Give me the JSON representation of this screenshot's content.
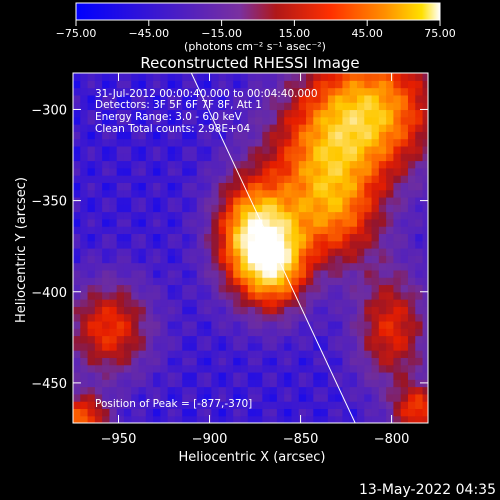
{
  "colorbar": {
    "ticks": [
      "-75.00",
      "-45.00",
      "-15.00",
      "15.00",
      "45.00",
      "75.00"
    ],
    "range": [
      -75,
      75
    ],
    "units_label": "(photons cm⁻² s⁻¹ asec⁻²)"
  },
  "annotations": {
    "time_range": "31-Jul-2012 00:00:40.000 to 00:04:40.000",
    "detectors": "Detectors: 3F 5F 6F 7F 8F, Att 1",
    "energy_range": "Energy Range: 3.0 - 6.0 keV",
    "algorithm": "Clean    Total counts: 2.98E+04",
    "peak_position": "Position of Peak = [-877,-370]"
  },
  "footer": {
    "timestamp": "13-May-2022 04:35"
  },
  "chart_data": {
    "type": "heatmap",
    "title": "Reconstructed RHESSI Image",
    "xlabel": "Heliocentric X (arcsec)",
    "ylabel": "Heliocentric Y (arcsec)",
    "xlim": [
      -975,
      -780
    ],
    "ylim": [
      -472,
      -280
    ],
    "xticks": [
      -950,
      -900,
      -850,
      -800
    ],
    "yticks": [
      -300,
      -350,
      -400,
      -450
    ],
    "xtick_labels": [
      "−950",
      "−900",
      "−850",
      "−800"
    ],
    "ytick_labels": [
      "−300",
      "−350",
      "−400",
      "−450"
    ],
    "peak": {
      "x": -877,
      "y": -370
    },
    "limb_line": [
      [
        -910,
        -280
      ],
      [
        -820,
        -472
      ]
    ],
    "colormap": [
      "#0000ff",
      "#5020c0",
      "#7a30a0",
      "#a02020",
      "#ff2000",
      "#ff8000",
      "#ffd000",
      "#ffffff"
    ]
  }
}
